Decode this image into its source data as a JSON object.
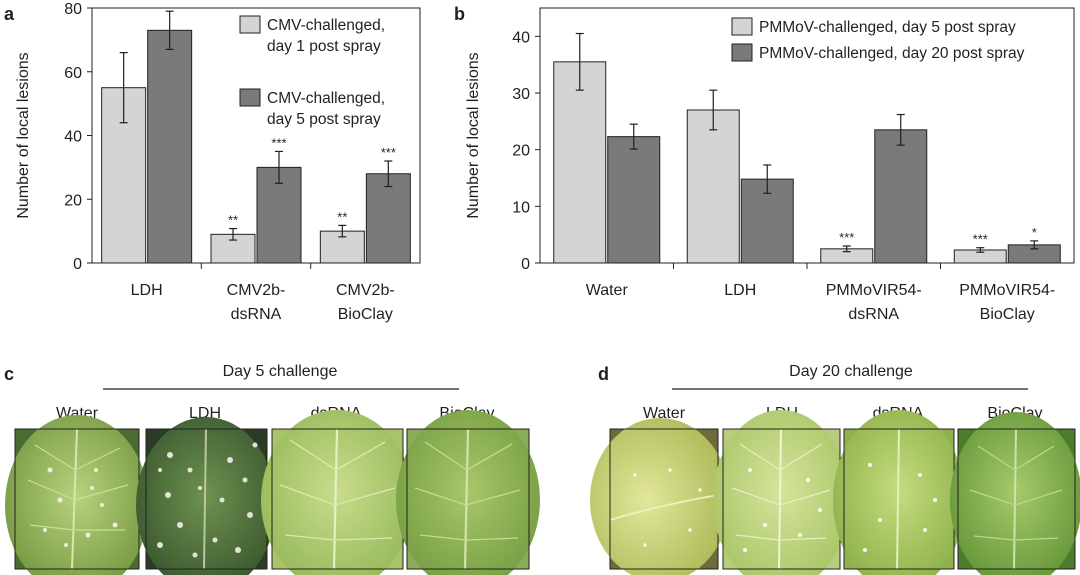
{
  "chart_data": [
    {
      "panel": "a",
      "type": "bar",
      "ylabel": "Number of local lesions",
      "xlabel": "",
      "ylim": [
        0,
        80
      ],
      "yticks": [
        0,
        20,
        40,
        60,
        80
      ],
      "categories": [
        [
          "LDH"
        ],
        [
          "CMV2b-",
          "dsRNA"
        ],
        [
          "CMV2b-",
          "BioClay"
        ]
      ],
      "series": [
        {
          "name": [
            "CMV-challenged,",
            "day 1 post spray"
          ],
          "color": "#d4d4d4",
          "values": [
            55,
            9,
            10
          ],
          "errors": [
            11,
            1.8,
            1.8
          ],
          "signif": [
            "",
            "**",
            "**"
          ]
        },
        {
          "name": [
            "CMV-challenged,",
            "day 5 post spray"
          ],
          "color": "#7a7a7a",
          "values": [
            73,
            30,
            28
          ],
          "errors": [
            6,
            5,
            4
          ],
          "signif": [
            "",
            "***",
            "***"
          ]
        }
      ]
    },
    {
      "panel": "b",
      "type": "bar",
      "ylabel": "Number of local lesions",
      "xlabel": "",
      "ylim": [
        0,
        45
      ],
      "yticks": [
        0,
        10,
        20,
        30,
        40
      ],
      "categories": [
        [
          "Water"
        ],
        [
          "LDH"
        ],
        [
          "PMMoVIR54-",
          "dsRNA"
        ],
        [
          "PMMoVIR54-",
          "BioClay"
        ]
      ],
      "series": [
        {
          "name": [
            "PMMoV-challenged, day 5 post spray"
          ],
          "color": "#d4d4d4",
          "values": [
            35.5,
            27,
            2.5,
            2.3
          ],
          "errors": [
            5,
            3.5,
            0.5,
            0.4
          ],
          "signif": [
            "",
            "",
            "***",
            "***"
          ]
        },
        {
          "name": [
            "PMMoV-challenged, day 20 post spray"
          ],
          "color": "#7a7a7a",
          "values": [
            22.3,
            14.8,
            23.5,
            3.2
          ],
          "errors": [
            2.2,
            2.5,
            2.7,
            0.7
          ],
          "signif": [
            "",
            "",
            "",
            "*"
          ]
        }
      ]
    }
  ],
  "photos": {
    "c": {
      "letter": "c",
      "heading": "Day 5 challenge",
      "labels": [
        "Water",
        "LDH",
        "dsRNA",
        "BioClay"
      ]
    },
    "d": {
      "letter": "d",
      "heading": "Day 20 challenge",
      "labels": [
        "Water",
        "LDH",
        "dsRNA",
        "BioClay"
      ]
    }
  },
  "colors": {
    "light_bar": "#d4d4d4",
    "dark_bar": "#7a7a7a",
    "axis": "#231f20"
  }
}
